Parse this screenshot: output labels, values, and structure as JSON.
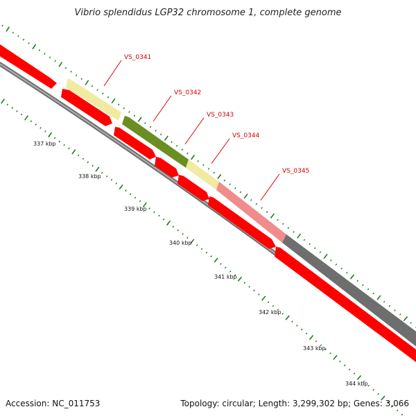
{
  "title": "Vibrio splendidus LGP32 chromosome 1, complete genome",
  "accession": "Accession: NC_011753",
  "topology": "Topology: circular; Length: 3,299,302 bp; Genes: 3,066",
  "colors": {
    "forward_cds": "#ff0000",
    "reverse_cds": "#ff0000",
    "backbone": "#808080",
    "ticks": "#1f7a1f",
    "label": "#cc0000",
    "label_line": "#e00000"
  },
  "scale_ticks": [
    {
      "label": "337 kbp"
    },
    {
      "label": "338 kbp"
    },
    {
      "label": "339 kbp"
    },
    {
      "label": "340 kbp"
    },
    {
      "label": "341 kbp"
    },
    {
      "label": "342 kbp"
    },
    {
      "label": "343 kbp"
    },
    {
      "label": "344 kbp"
    }
  ],
  "highlighted_genes": [
    {
      "name": "VS_0341",
      "color": "#f0eba0"
    },
    {
      "name": "VS_0342",
      "color": "#6b8e23"
    },
    {
      "name": "VS_0343",
      "color": "#f0eba0"
    },
    {
      "name": "VS_0344",
      "color": "#f08c8c"
    },
    {
      "name": "VS_0345",
      "color": "#6e6e6e"
    }
  ]
}
